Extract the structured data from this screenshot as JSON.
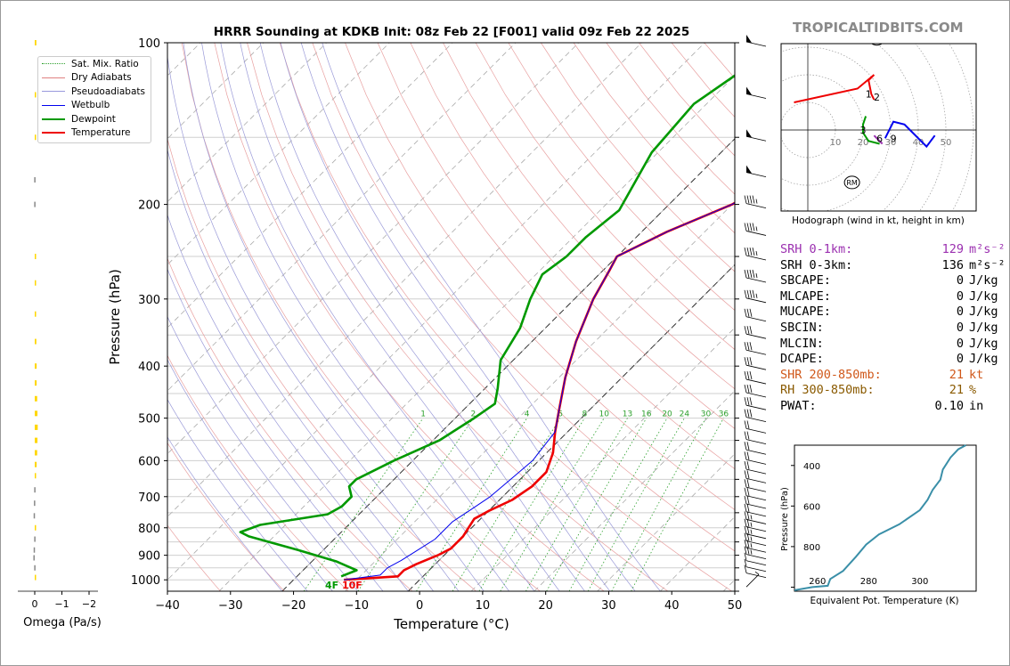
{
  "brand": "TROPICALTIDBITS.COM",
  "chart_data": [
    {
      "type": "line",
      "title": "HRRR Sounding at KDKB Init: 08z Feb 22 [F001] valid 09z Feb 22 2025",
      "xlabel": "Temperature (°C)",
      "ylabel": "Pressure (hPa)",
      "xlim": [
        -40,
        50
      ],
      "ylim": [
        1050,
        100
      ],
      "y_scale": "log",
      "x_ticks": [
        -40,
        -30,
        -20,
        -10,
        0,
        10,
        20,
        30,
        40,
        50
      ],
      "x_tick_labels": [
        "−40",
        "−30",
        "−20",
        "−10",
        "0",
        "10",
        "20",
        "30",
        "40",
        "50"
      ],
      "y_ticks": [
        100,
        200,
        300,
        400,
        500,
        600,
        700,
        800,
        900,
        1000
      ],
      "legend": {
        "placement": "top-left",
        "items": [
          {
            "label": "Sat. Mix. Ratio",
            "color": "#2ca02c",
            "style": "dotted"
          },
          {
            "label": "Dry Adiabats",
            "color": "#e08080",
            "style": "solid"
          },
          {
            "label": "Pseudoadiabats",
            "color": "#9999dd",
            "style": "solid"
          },
          {
            "label": "Wetbulb",
            "color": "#0000ee",
            "style": "solid"
          },
          {
            "label": "Dewpoint",
            "color": "#009900",
            "style": "thick"
          },
          {
            "label": "Temperature",
            "color": "#ee0000",
            "style": "thick"
          }
        ]
      },
      "mixing_ratio_labels": [
        "1",
        "2",
        "4",
        "6",
        "8",
        "10",
        "13",
        "16",
        "20",
        "24",
        "30",
        "36"
      ],
      "surface_label_dew": "4F",
      "surface_label_temp": "10F",
      "series": [
        {
          "name": "Temperature",
          "color": "#ee0000",
          "points": [
            [
              -12,
              1000
            ],
            [
              -4,
              985
            ],
            [
              -4,
              960
            ],
            [
              -3,
              935
            ],
            [
              -1,
              900
            ],
            [
              0,
              875
            ],
            [
              0,
              830
            ],
            [
              -0.5,
              800
            ],
            [
              -1,
              770
            ],
            [
              0,
              745
            ],
            [
              2,
              710
            ],
            [
              3,
              670
            ],
            [
              3,
              630
            ],
            [
              1,
              580
            ],
            [
              -2,
              530
            ],
            [
              -5,
              480
            ],
            [
              -9,
              420
            ],
            [
              -13,
              360
            ],
            [
              -17,
              300
            ],
            [
              -19,
              265
            ],
            [
              -20,
              250
            ],
            [
              -16,
              225
            ],
            [
              -10,
              200
            ],
            [
              -5,
              165
            ],
            [
              -1,
              140
            ],
            [
              0,
              120
            ],
            [
              1,
              100
            ]
          ]
        },
        {
          "name": "Wetbulb",
          "color": "#0000ee",
          "points": [
            [
              -12,
              1000
            ],
            [
              -7,
              980
            ],
            [
              -7,
              950
            ],
            [
              -6,
              920
            ],
            [
              -5,
              880
            ],
            [
              -4,
              840
            ],
            [
              -4,
              780
            ],
            [
              -3,
              740
            ],
            [
              -2,
              700
            ],
            [
              -1.5,
              650
            ],
            [
              -1,
              600
            ],
            [
              -2,
              530
            ],
            [
              -5,
              480
            ],
            [
              -9,
              420
            ],
            [
              -13,
              360
            ],
            [
              -17,
              300
            ],
            [
              -19,
              265
            ],
            [
              -20,
              250
            ],
            [
              -16,
              225
            ],
            [
              -10,
              200
            ],
            [
              -5,
              165
            ],
            [
              -1,
              140
            ],
            [
              0,
              120
            ],
            [
              1,
              100
            ]
          ]
        },
        {
          "name": "Dewpoint",
          "color": "#009900",
          "points": [
            [
              -13,
              985
            ],
            [
              -11.5,
              960
            ],
            [
              -16,
              925
            ],
            [
              -24,
              880
            ],
            [
              -34,
              830
            ],
            [
              -36,
              815
            ],
            [
              -34,
              790
            ],
            [
              -25,
              755
            ],
            [
              -24,
              730
            ],
            [
              -24,
              700
            ],
            [
              -26,
              670
            ],
            [
              -26,
              650
            ],
            [
              -23,
              600
            ],
            [
              -19,
              550
            ],
            [
              -17,
              500
            ],
            [
              -16,
              470
            ],
            [
              -18,
              440
            ],
            [
              -22,
              390
            ],
            [
              -24,
              340
            ],
            [
              -27,
              300
            ],
            [
              -29,
              270
            ],
            [
              -28,
              250
            ],
            [
              -28,
              230
            ],
            [
              -27,
              205
            ],
            [
              -31,
              160
            ],
            [
              -32,
              130
            ],
            [
              -30,
              115
            ],
            [
              -27,
              100
            ]
          ]
        }
      ],
      "wind_barbs_label": "wind barbs"
    },
    {
      "type": "bar",
      "xlabel": "Omega (Pa/s)",
      "x_ticks": [
        0,
        -1,
        -2
      ],
      "x_tick_labels": [
        "0",
        "−1",
        "−2"
      ],
      "bars": [
        {
          "p": 100,
          "v": -0.06,
          "c": "#ffd700"
        },
        {
          "p": 125,
          "v": -0.05,
          "c": "#ffd700"
        },
        {
          "p": 150,
          "v": -0.03,
          "c": "#ffd700"
        },
        {
          "p": 180,
          "v": 0.02,
          "c": "#888888"
        },
        {
          "p": 200,
          "v": 0.02,
          "c": "#888888"
        },
        {
          "p": 250,
          "v": -0.03,
          "c": "#ffd700"
        },
        {
          "p": 280,
          "v": -0.04,
          "c": "#ffd700"
        },
        {
          "p": 320,
          "v": -0.05,
          "c": "#ffd700"
        },
        {
          "p": 360,
          "v": -0.06,
          "c": "#ffd700"
        },
        {
          "p": 400,
          "v": -0.07,
          "c": "#ffd700"
        },
        {
          "p": 430,
          "v": -0.07,
          "c": "#ffd700"
        },
        {
          "p": 460,
          "v": -0.09,
          "c": "#ffd700"
        },
        {
          "p": 490,
          "v": -0.1,
          "c": "#ffd700"
        },
        {
          "p": 520,
          "v": -0.11,
          "c": "#ffd700"
        },
        {
          "p": 550,
          "v": -0.1,
          "c": "#ffd700"
        },
        {
          "p": 580,
          "v": -0.09,
          "c": "#ffd700"
        },
        {
          "p": 610,
          "v": -0.07,
          "c": "#ffd700"
        },
        {
          "p": 640,
          "v": -0.04,
          "c": "#ffd700"
        },
        {
          "p": 680,
          "v": 0.02,
          "c": "#888888"
        },
        {
          "p": 720,
          "v": 0.03,
          "c": "#888888"
        },
        {
          "p": 760,
          "v": 0.04,
          "c": "#888888"
        },
        {
          "p": 800,
          "v": -0.02,
          "c": "#ffd700"
        },
        {
          "p": 840,
          "v": 0.02,
          "c": "#888888"
        },
        {
          "p": 880,
          "v": 0.04,
          "c": "#888888"
        },
        {
          "p": 910,
          "v": 0.05,
          "c": "#888888"
        },
        {
          "p": 950,
          "v": 0.02,
          "c": "#888888"
        },
        {
          "p": 990,
          "v": -0.03,
          "c": "#ffd700"
        }
      ]
    },
    {
      "type": "line",
      "title": "Hodograph (wind in kt, height in km)",
      "ring_labels": [
        "10",
        "20",
        "30",
        "40",
        "50"
      ],
      "height_labels": [
        {
          "t": "1",
          "x": 22,
          "y": 13
        },
        {
          "t": "2",
          "x": 25,
          "y": 12
        },
        {
          "t": "3",
          "x": 20,
          "y": 0
        },
        {
          "t": "6",
          "x": 26,
          "y": -3
        },
        {
          "t": "9",
          "x": 31,
          "y": -3
        }
      ],
      "markers": [
        {
          "t": "LM",
          "x": 25,
          "y": 33
        },
        {
          "t": "RM",
          "x": 16,
          "y": -19
        }
      ],
      "segments": [
        {
          "color": "#ee0000",
          "points": [
            [
              -5,
              10
            ],
            [
              18,
              15
            ],
            [
              24,
              20
            ],
            [
              22,
              18
            ],
            [
              23,
              13
            ],
            [
              24,
              11
            ]
          ]
        },
        {
          "color": "#009900",
          "points": [
            [
              21,
              5
            ],
            [
              20,
              2
            ],
            [
              20,
              -1
            ],
            [
              22,
              -4
            ],
            [
              26,
              -5
            ]
          ]
        },
        {
          "color": "#9b30b0",
          "points": [
            [
              24,
              -2
            ],
            [
              26,
              -4
            ],
            [
              27,
              -5
            ]
          ]
        },
        {
          "color": "#0000ee",
          "points": [
            [
              28,
              -3
            ],
            [
              31,
              3
            ],
            [
              35,
              2
            ],
            [
              43,
              -6
            ],
            [
              46,
              -2
            ]
          ]
        }
      ]
    },
    {
      "type": "line",
      "xlabel": "Equivalent Pot. Temperature (K)",
      "ylabel": "Pressure (hPa)",
      "x_ticks": [
        260,
        280,
        300
      ],
      "y_ticks": [
        400,
        600,
        800
      ],
      "xlim": [
        251,
        322
      ],
      "ylim": [
        1020,
        300
      ],
      "series": [
        {
          "name": "theta_e",
          "color": "#3a8fa8",
          "points": [
            [
              251,
              1015
            ],
            [
              258,
              1000
            ],
            [
              264,
              993
            ],
            [
              265,
              960
            ],
            [
              270,
              920
            ],
            [
              275,
              850
            ],
            [
              279,
              790
            ],
            [
              284,
              740
            ],
            [
              292,
              690
            ],
            [
              300,
              620
            ],
            [
              303,
              570
            ],
            [
              305,
              520
            ],
            [
              308,
              470
            ],
            [
              309,
              420
            ],
            [
              312,
              360
            ],
            [
              315,
              320
            ],
            [
              318,
              300
            ]
          ]
        }
      ]
    }
  ],
  "stats": [
    {
      "label": "SRH 0-1km:",
      "value": "129",
      "unit": "m²s⁻²",
      "color": "purple"
    },
    {
      "label": "SRH 0-3km:",
      "value": "136",
      "unit": "m²s⁻²",
      "color": ""
    },
    {
      "label": "SBCAPE:",
      "value": "0",
      "unit": "J/kg",
      "color": ""
    },
    {
      "label": "MLCAPE:",
      "value": "0",
      "unit": "J/kg",
      "color": ""
    },
    {
      "label": "MUCAPE:",
      "value": "0",
      "unit": "J/kg",
      "color": ""
    },
    {
      "label": "SBCIN:",
      "value": "0",
      "unit": "J/kg",
      "color": ""
    },
    {
      "label": "MLCIN:",
      "value": "0",
      "unit": "J/kg",
      "color": ""
    },
    {
      "label": "DCAPE:",
      "value": "0",
      "unit": "J/kg",
      "color": ""
    },
    {
      "label": "SHR 200-850mb:",
      "value": "21",
      "unit": "kt",
      "color": "orange"
    },
    {
      "label": "RH 300-850mb:",
      "value": "21",
      "unit": "%",
      "color": "brown"
    },
    {
      "label": "PWAT:",
      "value": "0.10",
      "unit": "in",
      "color": ""
    }
  ]
}
